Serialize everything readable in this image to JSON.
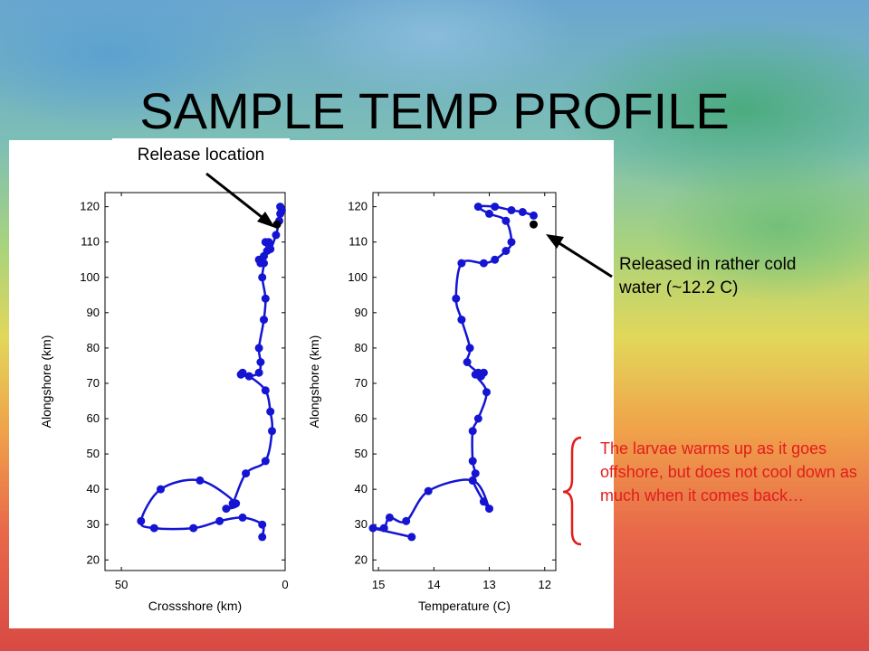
{
  "slide": {
    "title": "SAMPLE TEMP PROFILE"
  },
  "annotations": {
    "release_location": "Release location",
    "released_note": "Released in rather cold water (~12.2 C)",
    "larvae_note": "The larvae warms up as it goes offshore, but does not cool down as much when it comes back…"
  },
  "colors": {
    "track": "#1414d2",
    "release_marker": "#000000",
    "note_red": "#e31c1c"
  },
  "chart_data": [
    {
      "type": "line",
      "title": "",
      "xlabel": "Crossshore (km)",
      "ylabel": "Alongshore (km)",
      "xlim": [
        55,
        0
      ],
      "ylim": [
        17,
        124
      ],
      "x_ticks": [
        50,
        0
      ],
      "y_ticks": [
        20,
        30,
        40,
        50,
        60,
        70,
        80,
        90,
        100,
        110,
        120
      ],
      "release_point": {
        "x": 2.5,
        "y": 115
      },
      "series": [
        {
          "x": [
            1.5,
            1,
            1.5,
            1.8,
            2.8,
            4.5,
            5,
            6,
            5.5,
            6.5,
            7.5,
            8,
            6.5,
            7,
            6,
            6.5,
            8,
            7.5,
            8,
            11,
            13.5,
            13,
            13.5,
            11,
            6,
            4.5,
            4,
            6,
            12,
            16,
            18,
            15,
            26,
            38,
            44,
            40,
            28,
            20,
            13,
            7,
            7
          ],
          "y": [
            120,
            119,
            118,
            116,
            112,
            108,
            110,
            110,
            107.5,
            106,
            104,
            105,
            104,
            100,
            94,
            88,
            80,
            76,
            73,
            72,
            72.5,
            73,
            72.5,
            72,
            68,
            62,
            56.5,
            48,
            44.5,
            36,
            34.5,
            36,
            42.5,
            40,
            31,
            29,
            29,
            31,
            32,
            30,
            26.5
          ]
        }
      ]
    },
    {
      "type": "line",
      "title": "",
      "xlabel": "Temperature (C)",
      "ylabel": "Alongshore (km)",
      "xlim": [
        15.1,
        11.8
      ],
      "ylim": [
        17,
        124
      ],
      "x_ticks": [
        15,
        14,
        13,
        12
      ],
      "y_ticks": [
        20,
        30,
        40,
        50,
        60,
        70,
        80,
        90,
        100,
        110,
        120
      ],
      "release_point": {
        "x": 12.2,
        "y": 115
      },
      "series": [
        {
          "x": [
            12.2,
            12.4,
            12.6,
            12.9,
            13.2,
            13.0,
            12.7,
            12.6,
            12.7,
            12.9,
            13.1,
            13.5,
            13.6,
            13.5,
            13.35,
            13.4,
            13.2,
            13.15,
            13.1,
            13.25,
            13.05,
            13.2,
            13.3,
            13.3,
            13.25,
            13.3,
            13.1,
            13.0,
            13.3,
            14.1,
            14.5,
            14.8,
            14.9,
            15.1,
            14.4
          ],
          "y": [
            117.5,
            118.5,
            119,
            120,
            120,
            118,
            116,
            110,
            107.5,
            105,
            104,
            104,
            94,
            88,
            80,
            76,
            73,
            72,
            73,
            72.5,
            67.5,
            60,
            56.5,
            48,
            44.5,
            42.5,
            36.5,
            34.5,
            42.5,
            39.5,
            31,
            32,
            29,
            29,
            26.5
          ]
        }
      ]
    }
  ]
}
